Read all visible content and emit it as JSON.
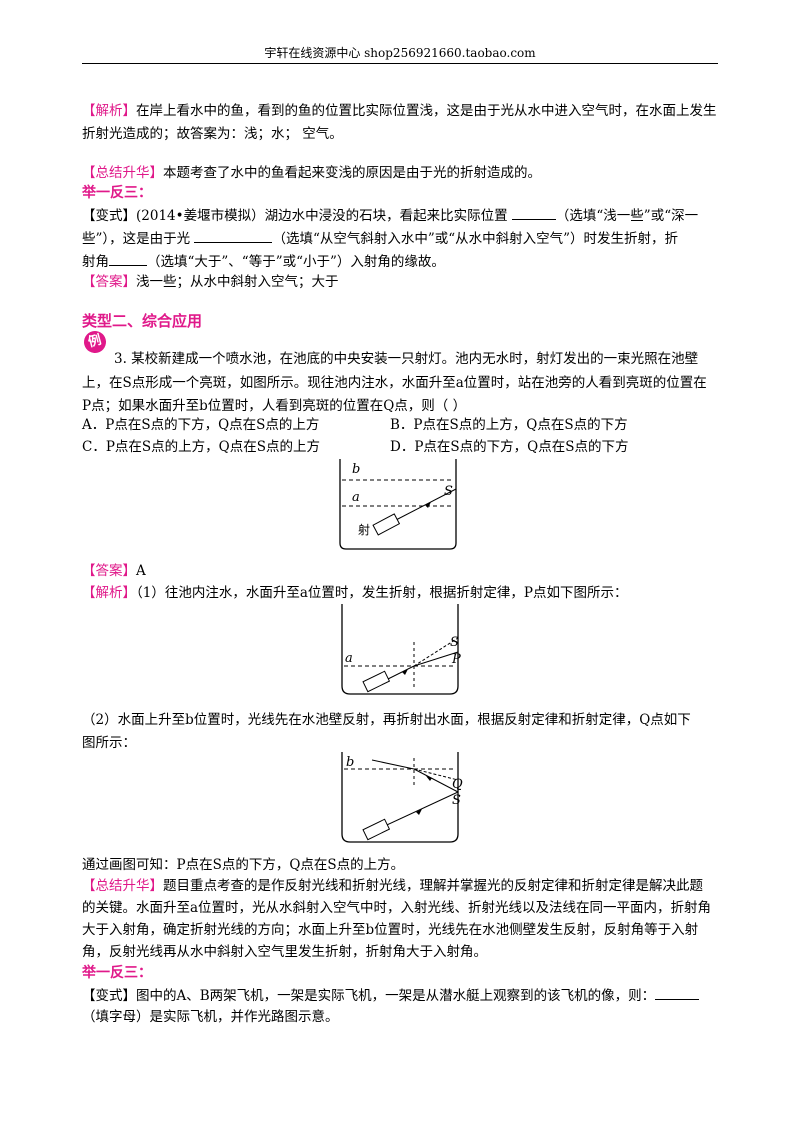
{
  "header": {
    "text": "宇轩在线资源中心   shop256921660.taobao.com"
  },
  "jiexi1": {
    "tag": "【解析】",
    "line1": "在岸上看水中的鱼，看到的鱼的位置比实际位置浅，这是由于光从水中进入空气时，在水面上发生",
    "line2": "折射光造成的；故答案为：浅；水；  空气。"
  },
  "summary1": {
    "tag": "【总结升华】",
    "text": "本题考查了水中的鱼看起来变浅的原因是由于光的折射造成的。"
  },
  "juyi1": {
    "label": "举一反三："
  },
  "variant1": {
    "tag": "【变式】",
    "line1a": "(2014•姜堰市模拟）湖边水中浸没的石块，看起来比实际位置 ",
    "line1b": "（选填“浅一些”或“深一",
    "line2a": "些”），这是由于光 ",
    "line2b": "（选填“从空气斜射入水中”或“从水中斜射入空气”）时发生折射，折",
    "line3a": "射角",
    "line3b": "（选填“大于”、“等于”或“小于”）入射角的缘故。"
  },
  "answer1": {
    "tag": "【答案】",
    "text": "浅一些；从水中斜射入空气；大于"
  },
  "section2": {
    "title": "类型二、综合应用"
  },
  "example_badge": "例",
  "question3": {
    "line1": "3.  某校新建成一个喷水池，在池底的中央安装一只射灯。池内无水时，射灯发出的一束光照在池壁",
    "line2": "上，在S点形成一个亮斑，如图所示。现往池内注水，水面升至a位置时，站在池旁的人看到亮斑的位置在",
    "line3": "P点；如果水面升至b位置时，人看到亮斑的位置在Q点，则（     ）",
    "optA": "A．P点在S点的下方，Q点在S点的上方",
    "optB": "B．P点在S点的上方，Q点在S点的下方",
    "optC": "C．P点在S点的上方，Q点在S点的上方",
    "optD": "D．P点在S点的下方，Q点在S点的下方"
  },
  "fig1": {
    "label_b": "b",
    "label_a": "a",
    "label_S": "S",
    "label_lamp": "射"
  },
  "answer2": {
    "tag": "【答案】",
    "text": "A"
  },
  "jiexi2": {
    "tag": "【解析】",
    "text": "（1）往池内注水，水面升至a位置时，发生折射，根据折射定律，P点如下图所示："
  },
  "fig2": {
    "label_a": "a",
    "label_S": "S",
    "label_P": "P"
  },
  "part2": {
    "line1": "（2）水面上升至b位置时，光线先在水池壁反射，再折射出水面，根据反射定律和折射定律，Q点如下",
    "line2": "图所示："
  },
  "fig3": {
    "label_b": "b",
    "label_Q": "Q",
    "label_S": "S"
  },
  "conclusion": "通过画图可知：P点在S点的下方，Q点在S点的上方。",
  "summary2": {
    "tag": "【总结升华】",
    "line1": "题目重点考查的是作反射光线和折射光线，理解并掌握光的反射定律和折射定律是解决此题",
    "line2": "的关键。水面升至a位置时，光从水斜射入空气中时，入射光线、折射光线以及法线在同一平面内，折射角",
    "line3": "大于入射角，确定折射光线的方向；水面上升至b位置时，光线先在水池侧壁发生反射，反射角等于入射",
    "line4": "角，反射光线再从水中斜射入空气里发生折射，折射角大于入射角。"
  },
  "juyi2": {
    "label": "举一反三："
  },
  "variant2": {
    "tag": "【变式】",
    "line1": "图中的A、B两架飞机，一架是实际飞机，一架是从潜水艇上观察到的该飞机的像，则：",
    "line2": "（填字母）是实际飞机，并作光路图示意。"
  }
}
